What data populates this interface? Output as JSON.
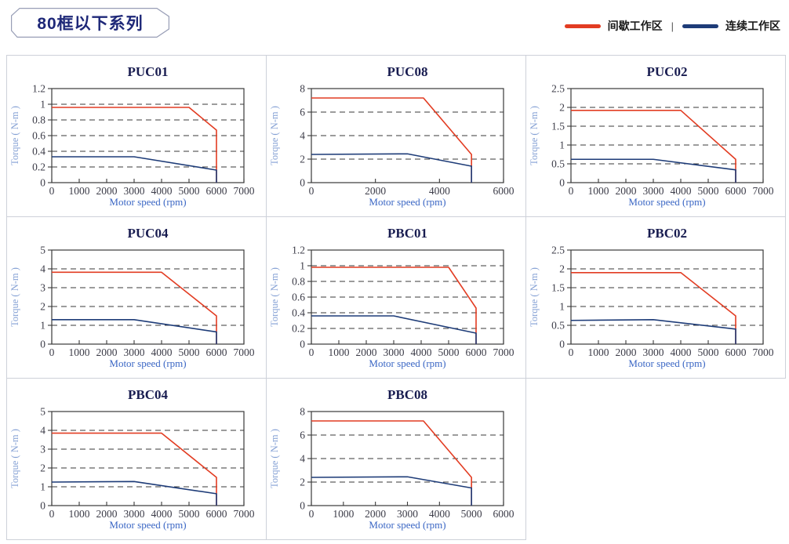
{
  "header": {
    "badge": "80框以下系列"
  },
  "legend": {
    "intermittent": {
      "label": "间歇工作区",
      "color": "#e23c22"
    },
    "separator": "|",
    "continuous": {
      "label": "连续工作区",
      "color": "#1e3c78"
    }
  },
  "colors": {
    "red_line": "#e23c22",
    "navy_line": "#1e3c78",
    "title_text": "#181c50",
    "cell_border": "#cdd1d9"
  },
  "chart_data": [
    {
      "type": "line",
      "title": "PUC01",
      "xlabel": "Motor speed (rpm)",
      "ylabel": "Torque ( N-m )",
      "xlim": [
        0,
        7000
      ],
      "ylim": [
        0,
        1.2
      ],
      "xticks": [
        0,
        1000,
        2000,
        3000,
        4000,
        5000,
        6000,
        7000
      ],
      "yticks": [
        0,
        0.2,
        0.4,
        0.6,
        0.8,
        1,
        1.2
      ],
      "grid": "horizontal-dashed",
      "legend_position": "none",
      "series": [
        {
          "name": "间歇工作区",
          "color": "#e23c22",
          "points": [
            [
              0,
              0.96
            ],
            [
              5000,
              0.96
            ],
            [
              6000,
              0.67
            ],
            [
              6000,
              0
            ]
          ]
        },
        {
          "name": "连续工作区",
          "color": "#1e3c78",
          "points": [
            [
              0,
              0.33
            ],
            [
              3000,
              0.33
            ],
            [
              6000,
              0.16
            ],
            [
              6000,
              0
            ]
          ]
        }
      ]
    },
    {
      "type": "line",
      "title": "PUC08",
      "xlabel": "Motor speed (rpm)",
      "ylabel": "Torque ( N-m )",
      "xlim": [
        0,
        6000
      ],
      "ylim": [
        0,
        8
      ],
      "xticks": [
        0,
        2000,
        4000,
        6000
      ],
      "yticks": [
        0,
        2,
        4,
        6,
        8
      ],
      "grid": "horizontal-dashed",
      "legend_position": "none",
      "series": [
        {
          "name": "间歇工作区",
          "color": "#e23c22",
          "points": [
            [
              0,
              7.2
            ],
            [
              3500,
              7.2
            ],
            [
              5000,
              2.4
            ],
            [
              5000,
              0
            ]
          ]
        },
        {
          "name": "连续工作区",
          "color": "#1e3c78",
          "points": [
            [
              0,
              2.4
            ],
            [
              3000,
              2.45
            ],
            [
              5000,
              1.4
            ],
            [
              5000,
              0
            ]
          ]
        }
      ]
    },
    {
      "type": "line",
      "title": "PUC02",
      "xlabel": "Motor speed (rpm)",
      "ylabel": "Torque ( N-m )",
      "xlim": [
        0,
        7000
      ],
      "ylim": [
        0,
        2.5
      ],
      "xticks": [
        0,
        1000,
        2000,
        3000,
        4000,
        5000,
        6000,
        7000
      ],
      "yticks": [
        0,
        0.5,
        1,
        1.5,
        2,
        2.5
      ],
      "grid": "horizontal-dashed",
      "legend_position": "none",
      "series": [
        {
          "name": "间歇工作区",
          "color": "#e23c22",
          "points": [
            [
              0,
              1.92
            ],
            [
              4000,
              1.92
            ],
            [
              6000,
              0.62
            ],
            [
              6000,
              0
            ]
          ]
        },
        {
          "name": "连续工作区",
          "color": "#1e3c78",
          "points": [
            [
              0,
              0.62
            ],
            [
              3000,
              0.62
            ],
            [
              6000,
              0.34
            ],
            [
              6000,
              0
            ]
          ]
        }
      ]
    },
    {
      "type": "line",
      "title": "PUC04",
      "xlabel": "Motor speed (rpm)",
      "ylabel": "Torque ( N-m )",
      "xlim": [
        0,
        7000
      ],
      "ylim": [
        0,
        5
      ],
      "xticks": [
        0,
        1000,
        2000,
        3000,
        4000,
        5000,
        6000,
        7000
      ],
      "yticks": [
        0,
        1,
        2,
        3,
        4,
        5
      ],
      "grid": "horizontal-dashed",
      "legend_position": "none",
      "series": [
        {
          "name": "间歇工作区",
          "color": "#e23c22",
          "points": [
            [
              0,
              3.82
            ],
            [
              4000,
              3.82
            ],
            [
              6000,
              1.5
            ],
            [
              6000,
              0
            ]
          ]
        },
        {
          "name": "连续工作区",
          "color": "#1e3c78",
          "points": [
            [
              0,
              1.3
            ],
            [
              3000,
              1.3
            ],
            [
              6000,
              0.65
            ],
            [
              6000,
              0
            ]
          ]
        }
      ]
    },
    {
      "type": "line",
      "title": "PBC01",
      "xlabel": "Motor speed (rpm)",
      "ylabel": "Torque ( N-m )",
      "xlim": [
        0,
        7000
      ],
      "ylim": [
        0,
        1.2
      ],
      "xticks": [
        0,
        1000,
        2000,
        3000,
        4000,
        5000,
        6000,
        7000
      ],
      "yticks": [
        0,
        0.2,
        0.4,
        0.6,
        0.8,
        1,
        1.2
      ],
      "grid": "horizontal-dashed",
      "legend_position": "none",
      "series": [
        {
          "name": "间歇工作区",
          "color": "#e23c22",
          "points": [
            [
              0,
              0.98
            ],
            [
              5000,
              0.98
            ],
            [
              6000,
              0.46
            ],
            [
              6000,
              0
            ]
          ]
        },
        {
          "name": "连续工作区",
          "color": "#1e3c78",
          "points": [
            [
              0,
              0.36
            ],
            [
              3000,
              0.36
            ],
            [
              6000,
              0.14
            ],
            [
              6000,
              0
            ]
          ]
        }
      ]
    },
    {
      "type": "line",
      "title": "PBC02",
      "xlabel": "Motor speed (rpm)",
      "ylabel": "Torque ( N-m )",
      "xlim": [
        0,
        7000
      ],
      "ylim": [
        0,
        2.5
      ],
      "xticks": [
        0,
        1000,
        2000,
        3000,
        4000,
        5000,
        6000,
        7000
      ],
      "yticks": [
        0,
        0.5,
        1,
        1.5,
        2,
        2.5
      ],
      "grid": "horizontal-dashed",
      "legend_position": "none",
      "series": [
        {
          "name": "间歇工作区",
          "color": "#e23c22",
          "points": [
            [
              0,
              1.9
            ],
            [
              4000,
              1.9
            ],
            [
              6000,
              0.75
            ],
            [
              6000,
              0
            ]
          ]
        },
        {
          "name": "连续工作区",
          "color": "#1e3c78",
          "points": [
            [
              0,
              0.63
            ],
            [
              3000,
              0.65
            ],
            [
              6000,
              0.4
            ],
            [
              6000,
              0
            ]
          ]
        }
      ]
    },
    {
      "type": "line",
      "title": "PBC04",
      "xlabel": "Motor speed (rpm)",
      "ylabel": "Torque ( N-m )",
      "xlim": [
        0,
        7000
      ],
      "ylim": [
        0,
        5
      ],
      "xticks": [
        0,
        1000,
        2000,
        3000,
        4000,
        5000,
        6000,
        7000
      ],
      "yticks": [
        0,
        1,
        2,
        3,
        4,
        5
      ],
      "grid": "horizontal-dashed",
      "legend_position": "none",
      "series": [
        {
          "name": "间歇工作区",
          "color": "#e23c22",
          "points": [
            [
              0,
              3.85
            ],
            [
              4000,
              3.85
            ],
            [
              6000,
              1.5
            ],
            [
              6000,
              0
            ]
          ]
        },
        {
          "name": "连续工作区",
          "color": "#1e3c78",
          "points": [
            [
              0,
              1.25
            ],
            [
              3000,
              1.28
            ],
            [
              6000,
              0.63
            ],
            [
              6000,
              0
            ]
          ]
        }
      ]
    },
    {
      "type": "line",
      "title": "PBC08",
      "xlabel": "Motor speed (rpm)",
      "ylabel": "Torque ( N-m )",
      "xlim": [
        0,
        6000
      ],
      "ylim": [
        0,
        8
      ],
      "xticks": [
        0,
        1000,
        2000,
        3000,
        4000,
        5000,
        6000
      ],
      "yticks": [
        0,
        2,
        4,
        6,
        8
      ],
      "grid": "horizontal-dashed",
      "legend_position": "none",
      "series": [
        {
          "name": "间歇工作区",
          "color": "#e23c22",
          "points": [
            [
              0,
              7.2
            ],
            [
              3500,
              7.2
            ],
            [
              5000,
              2.4
            ],
            [
              5000,
              0
            ]
          ]
        },
        {
          "name": "连续工作区",
          "color": "#1e3c78",
          "points": [
            [
              0,
              2.4
            ],
            [
              3000,
              2.45
            ],
            [
              5000,
              1.5
            ],
            [
              5000,
              0
            ]
          ]
        }
      ]
    }
  ]
}
